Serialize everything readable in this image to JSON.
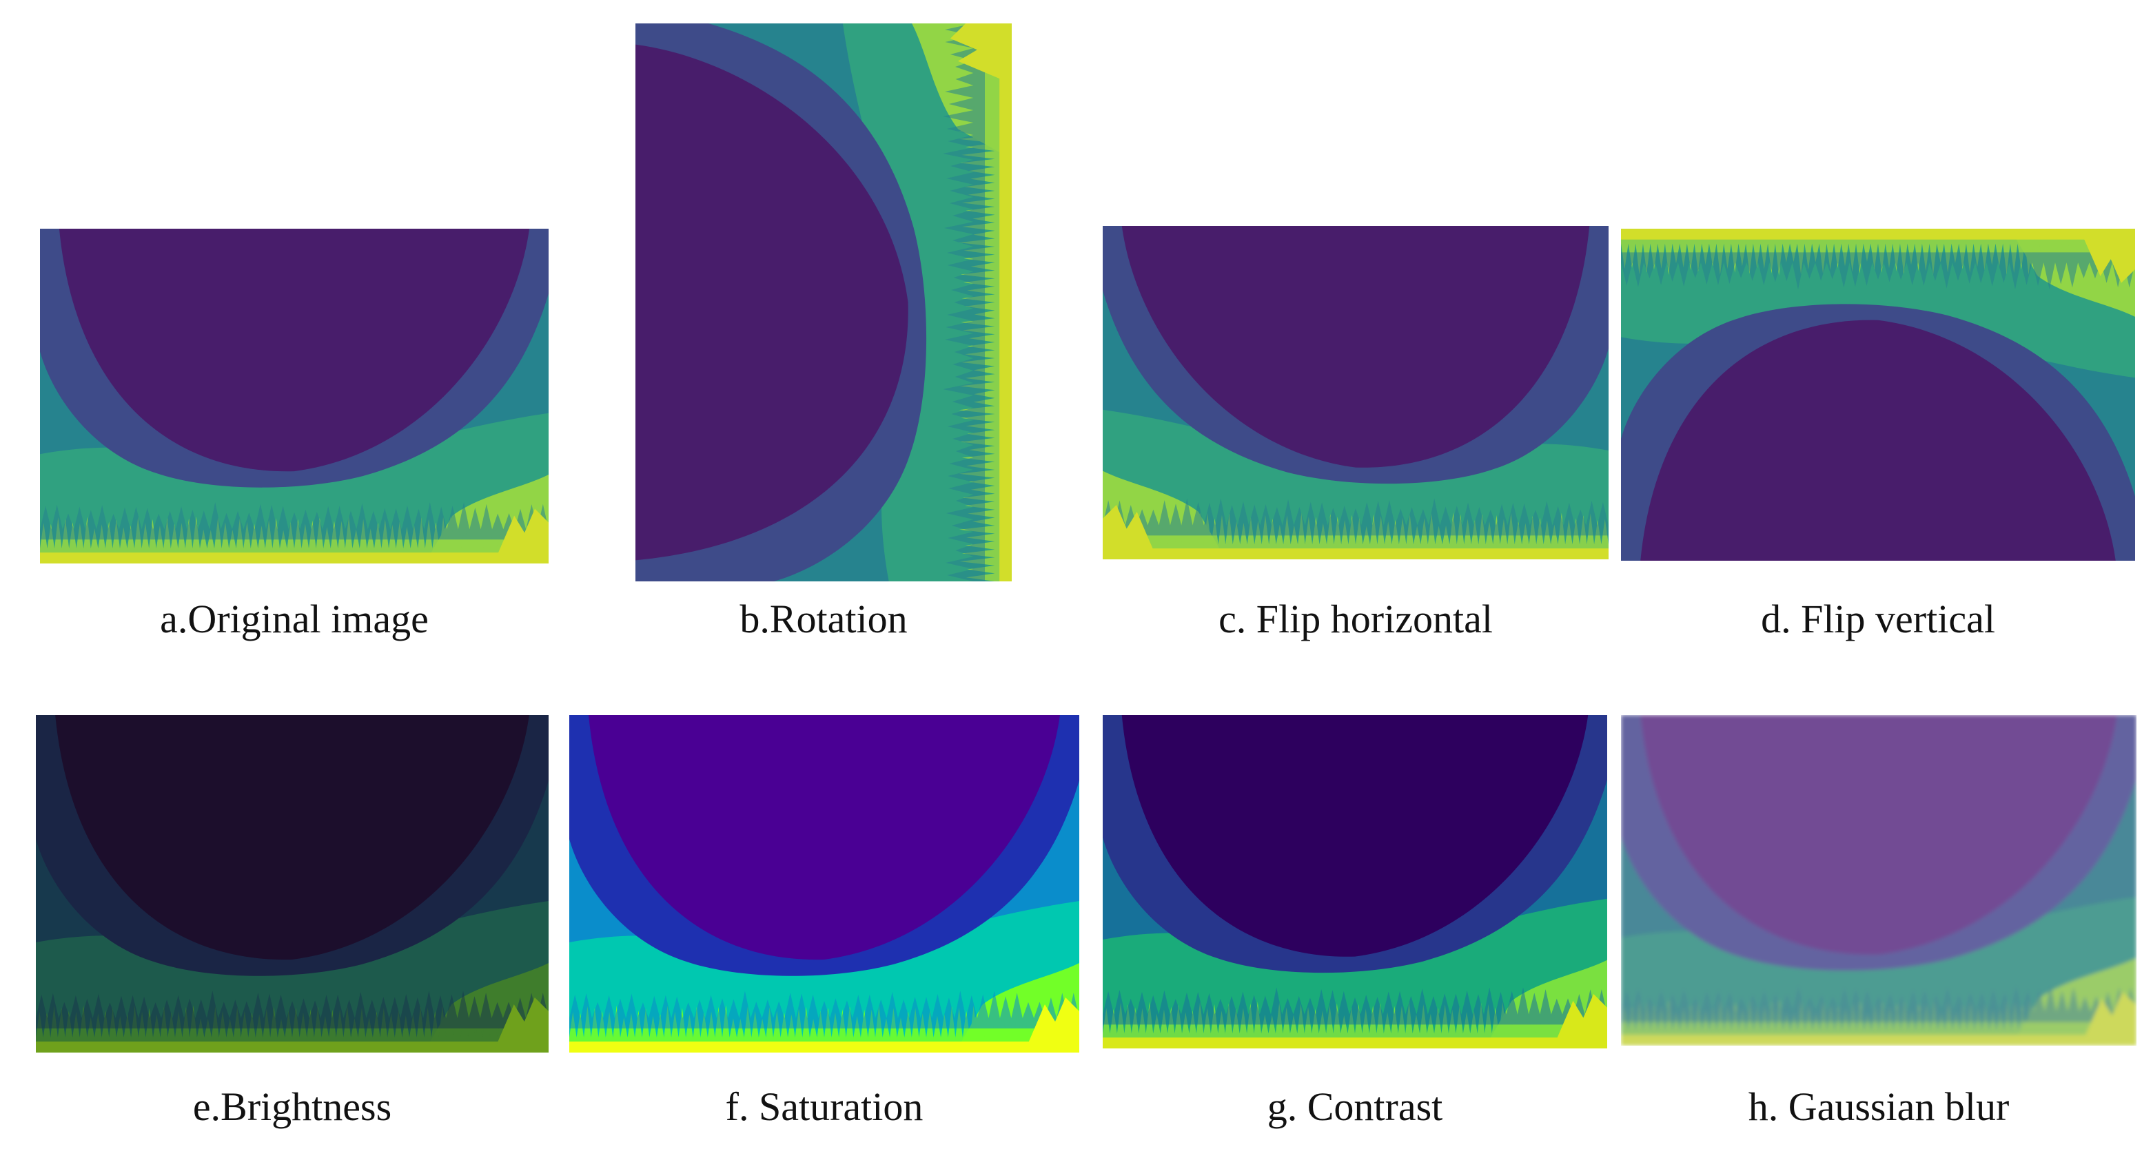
{
  "panels": [
    {
      "id": "a",
      "caption": "a.Original image",
      "colors": {
        "c0": "#d2de2a",
        "c1": "#92d546",
        "c2": "#30a180",
        "c3": "#26838e",
        "c4": "#3e4b89",
        "c5": "#481d6b"
      }
    },
    {
      "id": "b",
      "caption": "b.Rotation",
      "colors": {
        "c0": "#d2de2a",
        "c1": "#92d546",
        "c2": "#30a180",
        "c3": "#26838e",
        "c4": "#3e4b89",
        "c5": "#481d6b"
      }
    },
    {
      "id": "c",
      "caption": "c. Flip horizontal",
      "colors": {
        "c0": "#d2de2a",
        "c1": "#92d546",
        "c2": "#30a180",
        "c3": "#26838e",
        "c4": "#3e4b89",
        "c5": "#481d6b"
      }
    },
    {
      "id": "d",
      "caption": "d. Flip vertical",
      "colors": {
        "c0": "#d2de2a",
        "c1": "#92d546",
        "c2": "#30a180",
        "c3": "#26838e",
        "c4": "#3e4b89",
        "c5": "#481d6b"
      }
    },
    {
      "id": "e",
      "caption": "e.Brightness",
      "colors": {
        "c0": "#6fa11c",
        "c1": "#3f7d2c",
        "c2": "#1d5a4c",
        "c3": "#17394d",
        "c4": "#1a2545",
        "c5": "#1c0e2c"
      }
    },
    {
      "id": "f",
      "caption": "f. Saturation",
      "colors": {
        "c0": "#f0ff12",
        "c1": "#72ff28",
        "c2": "#00c8b0",
        "c3": "#0a8dcb",
        "c4": "#1e30b0",
        "c5": "#4a0094"
      }
    },
    {
      "id": "g",
      "caption": "g. Contrast",
      "colors": {
        "c0": "#d8e81a",
        "c1": "#7ae040",
        "c2": "#1aab7a",
        "c3": "#16719a",
        "c4": "#27368c",
        "c5": "#2d005e"
      }
    },
    {
      "id": "h",
      "caption": "h. Gaussian blur",
      "colors": {
        "c0": "#cdd95b",
        "c1": "#9bcc69",
        "c2": "#4d9c92",
        "c3": "#4a8898",
        "c4": "#6464a0",
        "c5": "#724b94"
      }
    }
  ]
}
